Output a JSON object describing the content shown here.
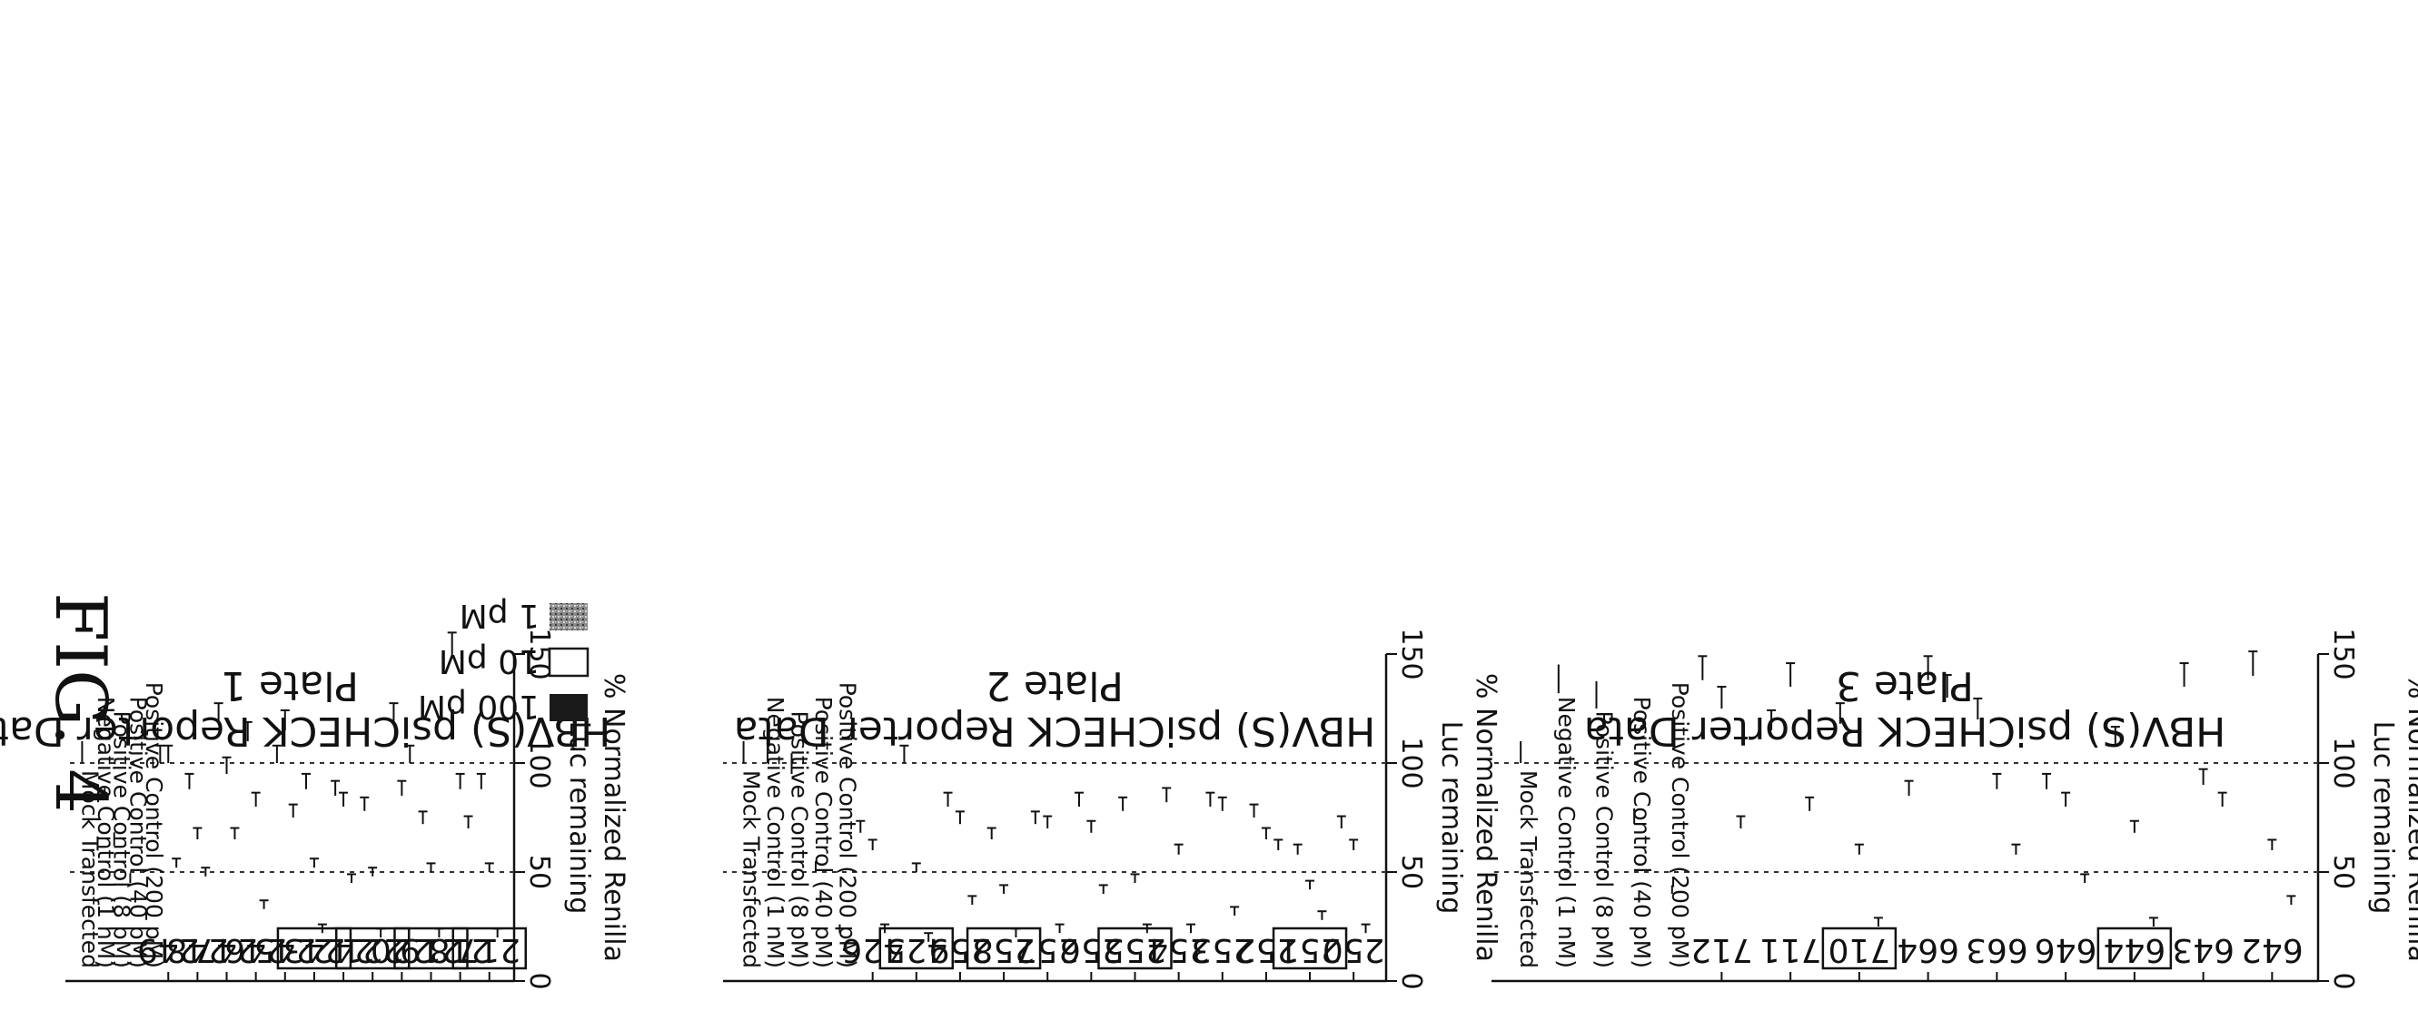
{
  "figure_label": "FIG. 4",
  "legend": [
    {
      "label": "100 pM",
      "pattern": "solid"
    },
    {
      "label": "10 pM",
      "pattern": "open"
    },
    {
      "label": "1 pM",
      "pattern": "speckle"
    }
  ],
  "control_labels": [
    "Positive Control (200 pM)",
    "Positive Control (40 pM)",
    "Positive Control (8 pM)",
    "Negative Control (1 nM)",
    "Mock Transfected"
  ],
  "chart_data": [
    {
      "type": "bar",
      "title": "HBV(S) psiCHECK Reporter Data",
      "subtitle": "Plate 1",
      "ylabel": "% Normalized Renilla\nLuc remaining",
      "ylim": [
        0,
        150
      ],
      "yticks": [
        "0",
        "50",
        "100",
        "150"
      ],
      "grid": "dashed at 50 and 100",
      "categories": [
        "217",
        "218",
        "219",
        "220",
        "221",
        "242",
        "243",
        "245",
        "246",
        "247",
        "248",
        "249"
      ],
      "boxed": [
        "217",
        "219",
        "221",
        "243"
      ],
      "series": [
        {
          "name": "100 pM",
          "values": [
            20,
            70,
            20,
            100,
            20,
            45,
            22,
            75,
            33,
            65,
            48,
            52
          ]
        },
        {
          "name": "10 pM",
          "values": [
            50,
            88,
            50,
            85,
            48,
            80,
            52,
            115,
            80,
            95,
            65,
            100
          ]
        },
        {
          "name": "1 pM",
          "values": [
            88,
            148,
            72,
            118,
            78,
            85,
            88,
            100,
            110,
            118,
            88,
            100
          ]
        }
      ],
      "controls": [
        {
          "label": "Positive Control (200 pM)",
          "value": 28
        },
        {
          "label": "Positive Control (40 pM)",
          "value": 45
        },
        {
          "label": "Positive Control (8 pM)",
          "value": 62
        },
        {
          "label": "Negative Control (1 nM)",
          "value": 82
        },
        {
          "label": "Mock Transfected",
          "value": 100
        }
      ]
    },
    {
      "type": "bar",
      "title": "HBV(S) psiCHECK Reporter Data",
      "subtitle": "Plate 2",
      "ylabel": "% Normalized Renilla\nLuc remaining",
      "ylim": [
        0,
        150
      ],
      "yticks": [
        "0",
        "50",
        "100",
        "150"
      ],
      "grid": "dashed at 50 and 100",
      "categories": [
        "250",
        "251",
        "252",
        "253",
        "254",
        "255",
        "256",
        "257",
        "258",
        "259",
        "425",
        "426"
      ],
      "boxed": [
        "251",
        "255",
        "258",
        "425"
      ],
      "series": [
        {
          "name": "100 pM",
          "values": [
            22,
            28,
            60,
            30,
            22,
            22,
            40,
            22,
            20,
            35,
            18,
            22
          ]
        },
        {
          "name": "10 pM",
          "values": [
            60,
            42,
            65,
            78,
            58,
            45,
            68,
            70,
            40,
            72,
            50,
            60
          ]
        },
        {
          "name": "1 pM",
          "values": [
            70,
            58,
            75,
            80,
            82,
            78,
            80,
            72,
            65,
            80,
            100,
            68
          ]
        }
      ],
      "controls": [
        {
          "label": "Positive Control (200 pM)",
          "value": 22
        },
        {
          "label": "Positive Control (40 pM)",
          "value": 50
        },
        {
          "label": "Positive Control (8 pM)",
          "value": 95
        },
        {
          "label": "Negative Control (1 nM)",
          "value": 100
        },
        {
          "label": "Mock Transfected",
          "value": 100
        }
      ]
    },
    {
      "type": "bar",
      "title": "HBV(S) psiCHECK Reporter Data",
      "subtitle": "Plate 3",
      "ylabel": "% Normalized Renilla\nLuc remaining",
      "ylim": [
        0,
        150
      ],
      "yticks": [
        "0",
        "50",
        "100",
        "150"
      ],
      "grid": "dashed at 50 and 100",
      "categories": [
        "642",
        "643",
        "644",
        "646",
        "663",
        "664",
        "710",
        "711",
        "712"
      ],
      "boxed": [
        "644",
        "710"
      ],
      "series": [
        {
          "name": "100 pM",
          "values": [
            35,
            80,
            25,
            45,
            58,
            130,
            25,
            78,
            70
          ]
        },
        {
          "name": "10 pM",
          "values": [
            60,
            90,
            68,
            80,
            88,
            138,
            58,
            135,
            125
          ]
        },
        {
          "name": "1 pM",
          "values": [
            140,
            135,
            108,
            88,
            120,
            85,
            118,
            115,
            138
          ]
        }
      ],
      "controls": [
        {
          "label": "Positive Control (200 pM)",
          "value": 40
        },
        {
          "label": "Positive Control (40 pM)",
          "value": 72
        },
        {
          "label": "Positive Control (8 pM)",
          "value": 125
        },
        {
          "label": "Negative Control (1 nM)",
          "value": 132
        },
        {
          "label": "Mock Transfected",
          "value": 100
        }
      ]
    }
  ]
}
